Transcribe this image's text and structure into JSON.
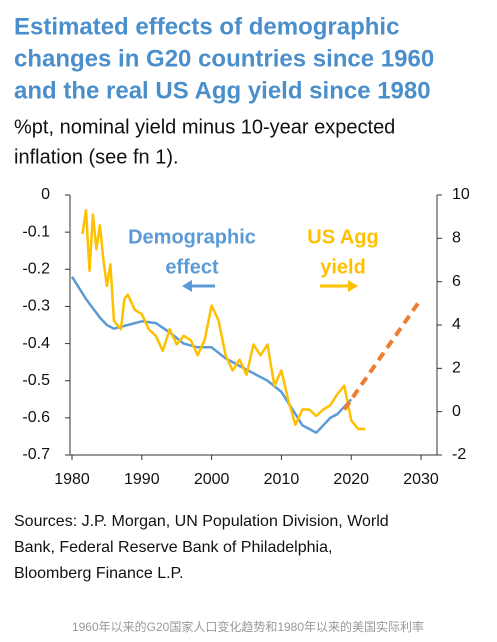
{
  "chart_data": {
    "type": "line",
    "title": [
      "Estimated effects of demographic",
      "changes in G20 countries since 1960",
      "and the real US Agg yield since 1980"
    ],
    "subtitle": [
      "%pt, nominal yield minus 10-year expected",
      "inflation (see fn 1)."
    ],
    "xlim": [
      1980,
      2032
    ],
    "xticks": [
      1980,
      1990,
      2000,
      2010,
      2020,
      2030
    ],
    "ylim": [
      -0.7,
      0
    ],
    "yticks": [
      0,
      -0.1,
      -0.2,
      -0.3,
      -0.4,
      -0.5,
      -0.6,
      -0.7
    ],
    "y2lim": [
      -2,
      10
    ],
    "y2ticks": [
      10,
      8,
      6,
      4,
      2,
      0,
      -2
    ],
    "grid": false,
    "series": [
      {
        "name": "Demographic effect",
        "color": "#5b9bd5",
        "axis": "y",
        "x": [
          1980,
          1982,
          1984,
          1985,
          1986,
          1988,
          1990,
          1992,
          1994,
          1996,
          1998,
          2000,
          2002,
          2004,
          2006,
          2008,
          2010,
          2012,
          2013,
          2014,
          2015,
          2016,
          2017,
          2018,
          2019,
          2020
        ],
        "values": [
          -0.22,
          -0.28,
          -0.33,
          -0.35,
          -0.36,
          -0.35,
          -0.34,
          -0.345,
          -0.37,
          -0.4,
          -0.41,
          -0.41,
          -0.44,
          -0.46,
          -0.48,
          -0.5,
          -0.53,
          -0.59,
          -0.62,
          -0.63,
          -0.64,
          -0.62,
          -0.6,
          -0.59,
          -0.57,
          -0.55
        ]
      },
      {
        "name": "US Agg yield",
        "color": "#ffc000",
        "axis": "y2",
        "x": [
          1981.5,
          1982,
          1982.5,
          1983,
          1983.5,
          1984,
          1984.5,
          1985,
          1985.5,
          1986,
          1987,
          1987.5,
          1988,
          1989,
          1990,
          1991,
          1992,
          1993,
          1994,
          1995,
          1996,
          1997,
          1998,
          1999,
          2000,
          2001,
          2002,
          2003,
          2004,
          2005,
          2006,
          2007,
          2008,
          2009,
          2010,
          2011,
          2012,
          2013,
          2014,
          2015,
          2016,
          2017,
          2018,
          2019,
          2020,
          2021,
          2022
        ],
        "values": [
          8.2,
          9.3,
          6.5,
          9.1,
          7.5,
          8.6,
          7,
          5.8,
          6.8,
          4.2,
          3.8,
          5.2,
          5.4,
          4.7,
          4.5,
          3.8,
          3.5,
          2.8,
          3.8,
          3.1,
          3.5,
          3.3,
          2.6,
          3.3,
          4.9,
          4.2,
          2.6,
          1.9,
          2.4,
          1.7,
          3.1,
          2.6,
          3.1,
          1.2,
          1.9,
          0.5,
          -0.6,
          0.1,
          0.1,
          -0.2,
          0.1,
          0.3,
          0.8,
          1.2,
          -0.4,
          -0.8,
          -0.8
        ]
      },
      {
        "color": "#ed7d31",
        "axis": "y2",
        "dashed": true,
        "x": [
          2019,
          2030
        ],
        "values": [
          0.1,
          5.2
        ]
      }
    ],
    "annotations": [
      {
        "text": [
          "Demographic",
          "effect"
        ],
        "color": "#5b9bd5",
        "arrow": "left"
      },
      {
        "text": [
          "US Agg",
          "yield"
        ],
        "color": "#ffc000",
        "arrow": "right"
      }
    ],
    "sources": [
      "Sources: J.P. Morgan, UN Population Division, World",
      "Bank, Federal Reserve Bank of Philadelphia,",
      "Bloomberg Finance L.P."
    ],
    "caption": "1960年以来的G20国家人口变化趋势和1980年以来的美国实际利率"
  }
}
